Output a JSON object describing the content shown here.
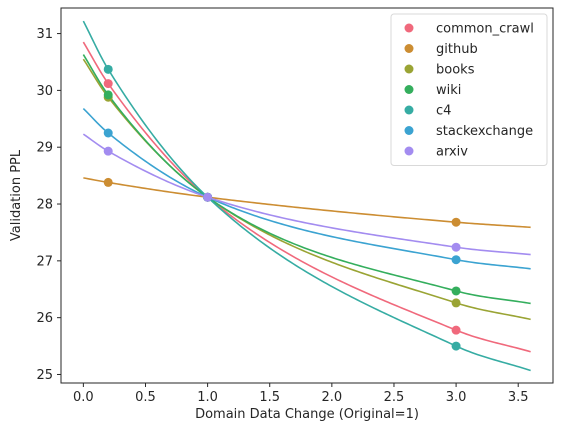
{
  "chart_data": {
    "type": "line",
    "xlabel": "Domain Data Change (Original=1)",
    "ylabel": "Validation PPL",
    "xlim": [
      -0.18,
      3.78
    ],
    "ylim": [
      24.85,
      31.45
    ],
    "x_ticks": [
      "0.0",
      "0.5",
      "1.0",
      "1.5",
      "2.0",
      "2.5",
      "3.0",
      "3.5"
    ],
    "y_ticks": [
      "25",
      "26",
      "27",
      "28",
      "29",
      "30",
      "31"
    ],
    "x_tick_values": [
      0,
      0.5,
      1.0,
      1.5,
      2.0,
      2.5,
      3.0,
      3.5
    ],
    "y_tick_values": [
      25,
      26,
      27,
      28,
      29,
      30,
      31
    ],
    "legend_position": "top-right",
    "grid": false,
    "curve_x_range": [
      0,
      3.6
    ],
    "series": [
      {
        "name": "common_crawl",
        "color": "#f0697c",
        "points": {
          "x": [
            0.2,
            1.0,
            3.0
          ],
          "y": [
            30.12,
            28.12,
            25.78
          ]
        },
        "curve": {
          "x": [
            0,
            0.2,
            1.0,
            3.0,
            3.6
          ],
          "y": [
            30.85,
            30.12,
            28.12,
            25.78,
            25.4
          ]
        }
      },
      {
        "name": "github",
        "color": "#cc8d32",
        "points": {
          "x": [
            0.2,
            1.0,
            3.0
          ],
          "y": [
            28.38,
            28.12,
            27.68
          ]
        },
        "curve": {
          "x": [
            0,
            0.2,
            1.0,
            3.0,
            3.6
          ],
          "y": [
            28.46,
            28.38,
            28.12,
            27.68,
            27.59
          ]
        }
      },
      {
        "name": "books",
        "color": "#9aa434",
        "points": {
          "x": [
            0.2,
            1.0,
            3.0
          ],
          "y": [
            29.88,
            28.12,
            26.26
          ]
        },
        "curve": {
          "x": [
            0,
            0.2,
            1.0,
            3.0,
            3.6
          ],
          "y": [
            30.55,
            29.88,
            28.12,
            26.26,
            25.97
          ]
        }
      },
      {
        "name": "wiki",
        "color": "#34ae5d",
        "points": {
          "x": [
            0.2,
            1.0,
            3.0
          ],
          "y": [
            29.92,
            28.12,
            26.47
          ]
        },
        "curve": {
          "x": [
            0,
            0.2,
            1.0,
            3.0,
            3.6
          ],
          "y": [
            30.63,
            29.92,
            28.12,
            26.47,
            26.25
          ]
        }
      },
      {
        "name": "c4",
        "color": "#36aca3",
        "points": {
          "x": [
            0.2,
            1.0,
            3.0
          ],
          "y": [
            30.37,
            28.12,
            25.5
          ]
        },
        "curve": {
          "x": [
            0,
            0.2,
            1.0,
            3.0,
            3.6
          ],
          "y": [
            31.22,
            30.37,
            28.12,
            25.5,
            25.07
          ]
        }
      },
      {
        "name": "stackexchange",
        "color": "#3ba3d1",
        "points": {
          "x": [
            0.2,
            1.0,
            3.0
          ],
          "y": [
            29.25,
            28.12,
            27.02
          ]
        },
        "curve": {
          "x": [
            0,
            0.2,
            1.0,
            3.0,
            3.6
          ],
          "y": [
            29.68,
            29.25,
            28.12,
            27.02,
            26.86
          ]
        }
      },
      {
        "name": "arxiv",
        "color": "#a38cf0",
        "points": {
          "x": [
            0.2,
            1.0,
            3.0
          ],
          "y": [
            28.93,
            28.12,
            27.24
          ]
        },
        "curve": {
          "x": [
            0,
            0.2,
            1.0,
            3.0,
            3.6
          ],
          "y": [
            29.23,
            28.93,
            28.12,
            27.24,
            27.11
          ]
        }
      }
    ]
  }
}
